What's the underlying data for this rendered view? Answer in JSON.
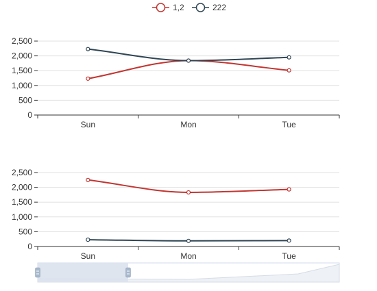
{
  "chart_data": [
    {
      "type": "line",
      "categories": [
        "Sun",
        "Mon",
        "Tue"
      ],
      "ylim": [
        0,
        2500
      ],
      "yticks": [
        0,
        500,
        1000,
        1500,
        2000,
        2500
      ],
      "ytick_labels": [
        "0",
        "500",
        "1,000",
        "1,500",
        "2,000",
        "2,500"
      ],
      "grid": true,
      "smooth": true,
      "legend": "top-center",
      "series": [
        {
          "name": "1,2",
          "values": [
            1230,
            1840,
            1510
          ],
          "color": "#c23531"
        },
        {
          "name": "222",
          "values": [
            2230,
            1840,
            1950
          ],
          "color": "#2f4554"
        }
      ]
    },
    {
      "type": "line",
      "categories": [
        "Sun",
        "Mon",
        "Tue"
      ],
      "ylim": [
        0,
        2500
      ],
      "yticks": [
        0,
        500,
        1000,
        1500,
        2000,
        2500
      ],
      "ytick_labels": [
        "0",
        "500",
        "1,000",
        "1,500",
        "2,000",
        "2,500"
      ],
      "grid": true,
      "smooth": true,
      "series": [
        {
          "name": "1,2",
          "values": [
            2250,
            1830,
            1930
          ],
          "color": "#c23531"
        },
        {
          "name": "222",
          "values": [
            230,
            190,
            200
          ],
          "color": "#2f4554"
        }
      ]
    }
  ],
  "dataZoom": {
    "start": 0,
    "end": 30,
    "fill": "#dbe2ed",
    "handle_color": "#a7b7cc"
  },
  "colors": {
    "grid": "#e0e0e0",
    "axis": "#333333",
    "text": "#333333"
  }
}
